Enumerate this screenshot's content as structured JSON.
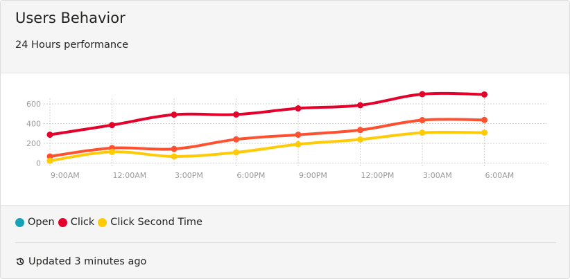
{
  "header": {
    "title": "Users Behavior",
    "subtitle": "24 Hours performance"
  },
  "legend": {
    "items": [
      {
        "label": "Open",
        "color": "#17a2b8",
        "icon": "circle-icon"
      },
      {
        "label": "Click",
        "color": "#e3002a",
        "icon": "circle-icon"
      },
      {
        "label": "Click Second Time",
        "color": "#ffcb06",
        "icon": "circle-icon"
      }
    ]
  },
  "footer": {
    "stats_icon": "history-icon",
    "stats_text": "Updated 3 minutes ago"
  },
  "chart_data": {
    "type": "line",
    "categories": [
      "9:00AM",
      "12:00AM",
      "3:00PM",
      "6:00PM",
      "9:00PM",
      "12:00PM",
      "3:00AM",
      "6:00AM"
    ],
    "x_ticks": [
      "9:00AM",
      "12:00AM",
      "3:00PM",
      "6:00PM",
      "9:00PM",
      "12:00PM",
      "3:00AM",
      "6:00AM"
    ],
    "y_ticks": [
      0,
      200,
      400,
      600
    ],
    "ylim": [
      -20,
      640
    ],
    "grid": true,
    "series": [
      {
        "name": "Click",
        "color": "#e3002a",
        "values": [
          287,
          385,
          490,
          492,
          554,
          586,
          698,
          695
        ]
      },
      {
        "name": "",
        "color": "#ff5130",
        "values": [
          67,
          152,
          143,
          240,
          287,
          335,
          435,
          437
        ]
      },
      {
        "name": "Click Second Time",
        "color": "#ffcb06",
        "values": [
          23,
          113,
          67,
          108,
          190,
          239,
          307,
          308
        ]
      }
    ]
  }
}
